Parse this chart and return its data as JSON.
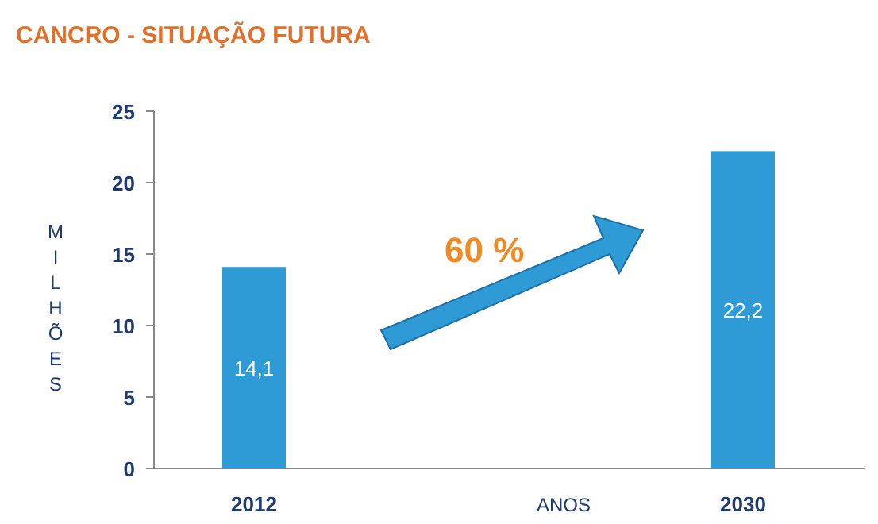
{
  "chart_data": {
    "type": "bar",
    "title": "CANCRO -  SITUAÇÃO FUTURA",
    "xlabel": "ANOS",
    "ylabel": "MILHÕES",
    "categories": [
      "2012",
      "2030"
    ],
    "values": [
      14.1,
      22.2
    ],
    "value_labels": [
      "14,1",
      "22,2"
    ],
    "color": "#2e9ad6",
    "ylim": [
      0,
      25
    ],
    "yticks": [
      0,
      5,
      10,
      15,
      20,
      25
    ],
    "annotations": [
      "60 %"
    ]
  }
}
